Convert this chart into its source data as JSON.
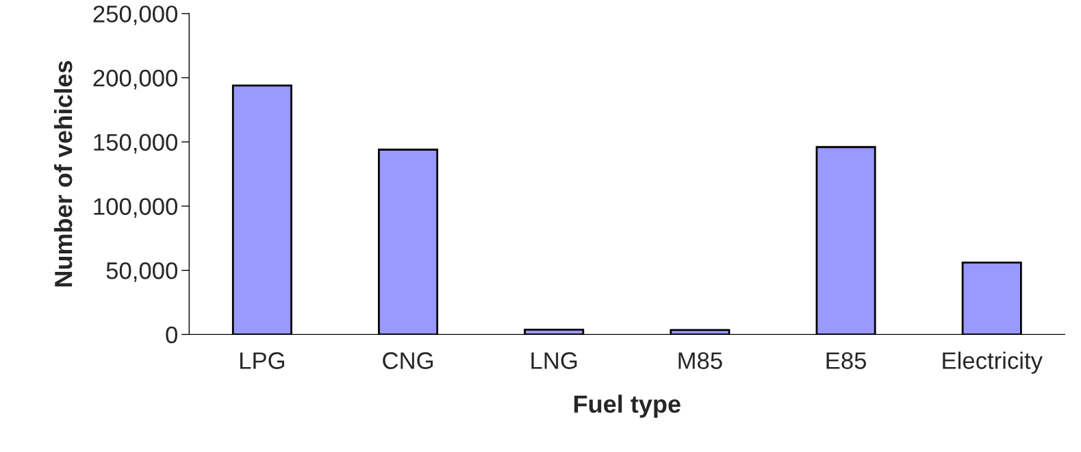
{
  "chart_data": {
    "type": "bar",
    "xlabel": "Fuel type",
    "ylabel": "Number of vehicles",
    "categories": [
      "LPG",
      "CNG",
      "LNG",
      "M85",
      "E85",
      "Electricity"
    ],
    "values": [
      194000,
      144000,
      3700,
      3500,
      146000,
      56000
    ],
    "color": "#9999ff",
    "ylim": [
      0,
      250000
    ],
    "yticks": [
      {
        "value": 0,
        "label": "0"
      },
      {
        "value": 50000,
        "label": "50,000"
      },
      {
        "value": 100000,
        "label": "100,000"
      },
      {
        "value": 150000,
        "label": "150,000"
      },
      {
        "value": 200000,
        "label": "200,000"
      },
      {
        "value": 250000,
        "label": "250,000"
      }
    ],
    "grid": false,
    "legend": false
  }
}
